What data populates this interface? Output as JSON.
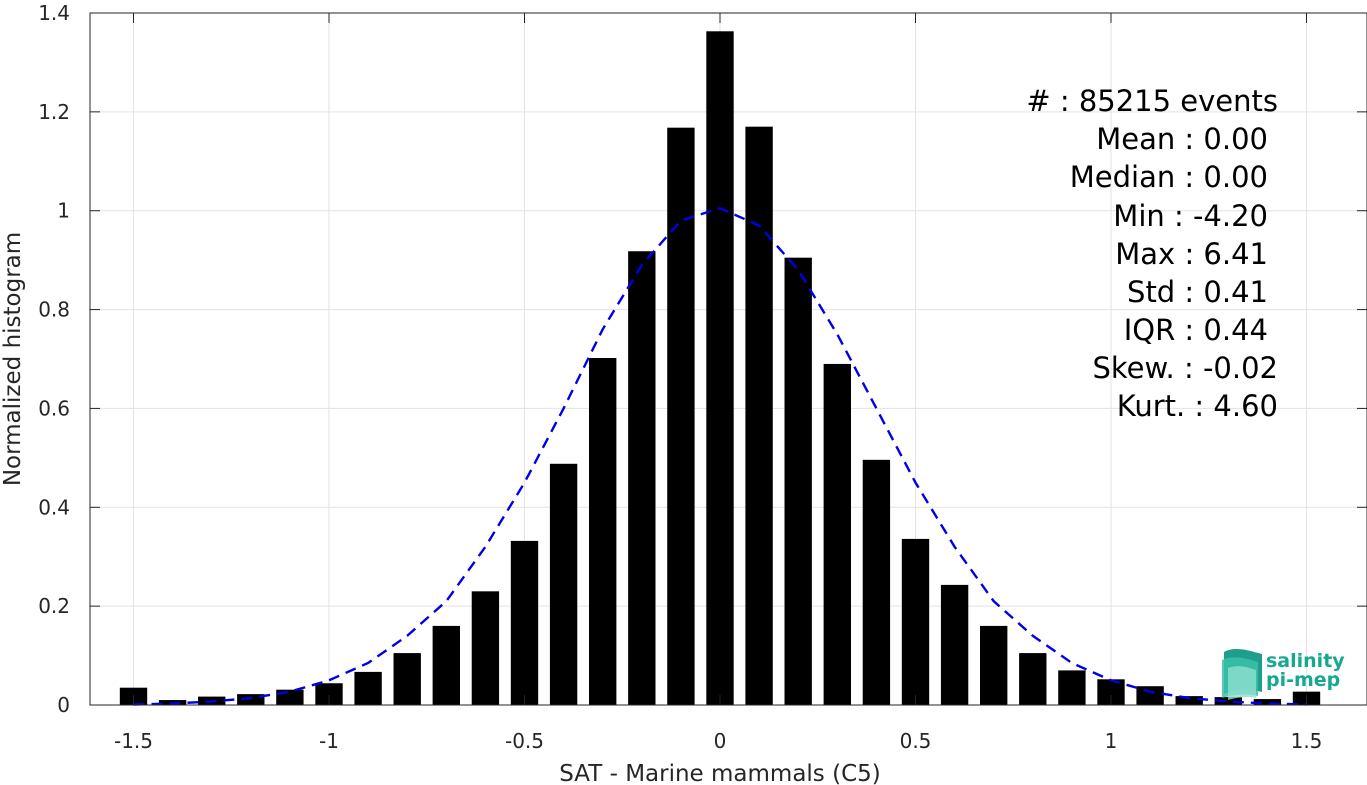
{
  "chart_data": {
    "type": "bar",
    "xlabel": "SAT - Marine mammals (C5)",
    "ylabel": "Normalized histogram",
    "xlim": [
      -1.65,
      1.65
    ],
    "ylim": [
      0,
      1.4
    ],
    "xticks": [
      -1.5,
      -1,
      -0.5,
      0,
      0.5,
      1,
      1.5
    ],
    "xtick_labels": [
      "-1.5",
      "-1",
      "-0.5",
      "0",
      "0.5",
      "1",
      "1.5"
    ],
    "yticks": [
      0,
      0.2,
      0.4,
      0.6,
      0.8,
      1,
      1.2,
      1.4
    ],
    "ytick_labels": [
      "0",
      "0.2",
      "0.4",
      "0.6",
      "0.8",
      "1",
      "1.2",
      "1.4"
    ],
    "grid": true,
    "bar_color": "#000000",
    "bar_width": 0.07,
    "bars": {
      "x": [
        -1.5,
        -1.4,
        -1.3,
        -1.2,
        -1.1,
        -1.0,
        -0.9,
        -0.8,
        -0.7,
        -0.6,
        -0.5,
        -0.4,
        -0.3,
        -0.2,
        -0.1,
        0.0,
        0.1,
        0.2,
        0.3,
        0.4,
        0.5,
        0.6,
        0.7,
        0.8,
        0.9,
        1.0,
        1.1,
        1.2,
        1.3,
        1.4,
        1.5
      ],
      "values": [
        0.035,
        0.01,
        0.017,
        0.022,
        0.031,
        0.044,
        0.067,
        0.105,
        0.16,
        0.23,
        0.332,
        0.488,
        0.702,
        0.918,
        1.168,
        1.363,
        1.17,
        0.905,
        0.69,
        0.496,
        0.336,
        0.243,
        0.16,
        0.105,
        0.07,
        0.052,
        0.038,
        0.018,
        0.016,
        0.012,
        0.027
      ]
    },
    "fit_curve": {
      "style": "dashed",
      "color": "#0000e6",
      "x": [
        -1.5,
        -1.4,
        -1.3,
        -1.2,
        -1.1,
        -1.0,
        -0.9,
        -0.8,
        -0.7,
        -0.6,
        -0.5,
        -0.4,
        -0.3,
        -0.2,
        -0.1,
        0.0,
        0.1,
        0.2,
        0.3,
        0.4,
        0.5,
        0.6,
        0.7,
        0.8,
        0.9,
        1.0,
        1.1,
        1.2,
        1.3,
        1.4,
        1.5
      ],
      "y": [
        0.001,
        0.003,
        0.007,
        0.014,
        0.027,
        0.05,
        0.085,
        0.14,
        0.21,
        0.32,
        0.45,
        0.6,
        0.76,
        0.89,
        0.98,
        1.005,
        0.97,
        0.88,
        0.75,
        0.6,
        0.45,
        0.32,
        0.21,
        0.14,
        0.085,
        0.05,
        0.027,
        0.014,
        0.007,
        0.003,
        0.001
      ]
    },
    "annotations": [
      "#  : 85215 events",
      "Mean : 0.00",
      "Median : 0.00",
      "Min : -4.20",
      "Max : 6.41",
      "Std : 0.41",
      "IQR : 0.44",
      "Skew. : -0.02",
      "Kurt. : 4.60"
    ]
  },
  "logo": {
    "line1": "salinity",
    "line2": "pi-mep",
    "color": "#17a892"
  }
}
